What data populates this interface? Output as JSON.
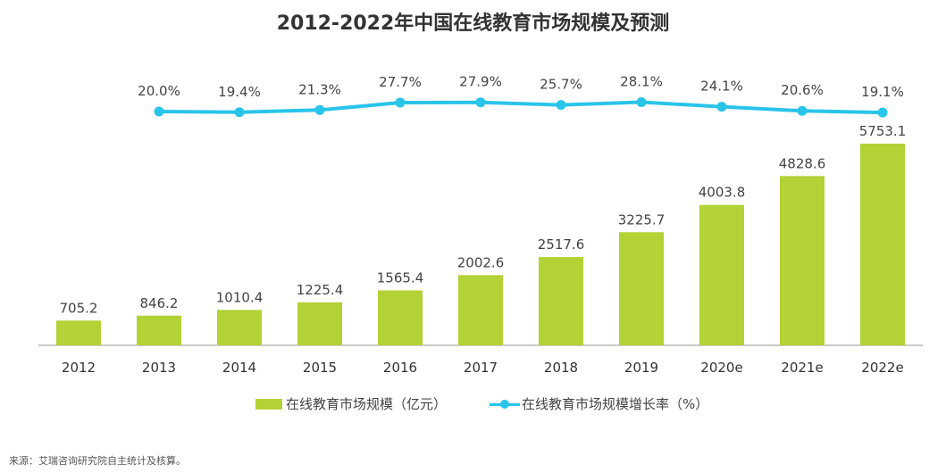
{
  "chart_data": {
    "type": "bar+line",
    "title": "2012-2022年中国在线教育市场规模及预测",
    "categories": [
      "2012",
      "2013",
      "2014",
      "2015",
      "2016",
      "2017",
      "2018",
      "2019",
      "2020e",
      "2021e",
      "2022e"
    ],
    "series": [
      {
        "name": "在线教育市场规模（亿元）",
        "type": "bar",
        "color": "#b2d235",
        "values": [
          705.2,
          846.2,
          1010.4,
          1225.4,
          1565.4,
          2002.6,
          2517.6,
          3225.7,
          4003.8,
          4828.6,
          5753.1
        ],
        "labels": [
          "705.2",
          "846.2",
          "1010.4",
          "1225.4",
          "1565.4",
          "2002.6",
          "2517.6",
          "3225.7",
          "4003.8",
          "4828.6",
          "5753.1"
        ]
      },
      {
        "name": "在线教育市场规模增长率（%）",
        "type": "line",
        "color": "#29c4ea",
        "values": [
          null,
          20.0,
          19.4,
          21.3,
          27.7,
          27.9,
          25.7,
          28.1,
          24.1,
          20.6,
          19.1
        ],
        "labels": [
          null,
          "20.0%",
          "19.4%",
          "21.3%",
          "27.7%",
          "27.9%",
          "25.7%",
          "28.1%",
          "24.1%",
          "20.6%",
          "19.1%"
        ]
      }
    ],
    "legend_position": "bottom",
    "grid": false
  },
  "source": "来源：艾瑞咨询研究院自主统计及核算。"
}
